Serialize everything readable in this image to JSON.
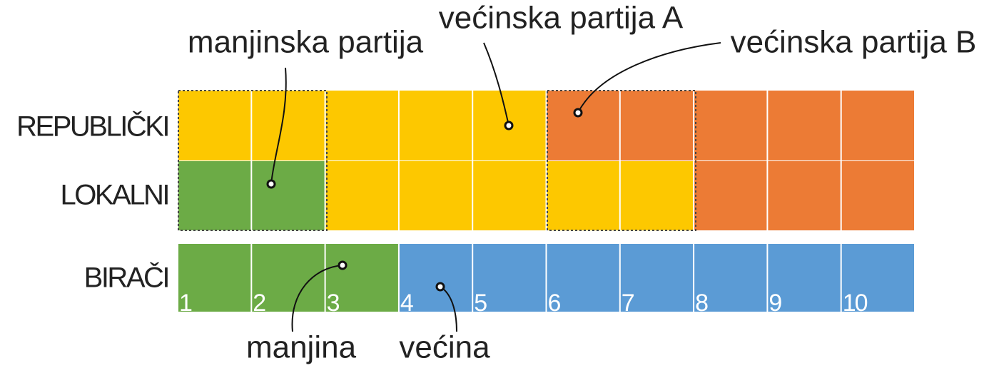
{
  "rows": [
    {
      "label": "REPUBLIČKI"
    },
    {
      "label": "LOKALNI"
    },
    {
      "label": "BIRAČI"
    }
  ],
  "voters": [
    "1",
    "2",
    "3",
    "4",
    "5",
    "6",
    "7",
    "8",
    "9",
    "10"
  ],
  "callouts": {
    "minority_party": "manjinska partija",
    "majority_party_a": "većinska partija A",
    "majority_party_b": "većinska partija B",
    "minority": "manjina",
    "majority": "većina"
  }
}
